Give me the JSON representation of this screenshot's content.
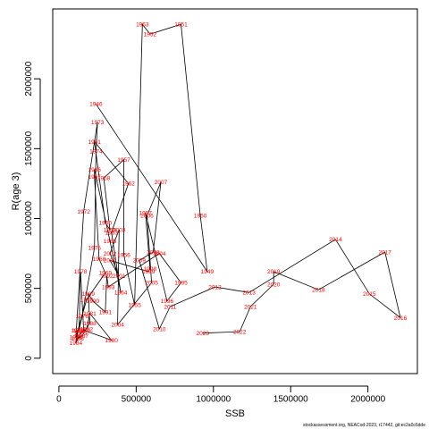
{
  "chart_data": {
    "type": "scatter",
    "xlabel": "SSB",
    "ylabel": "R(age 3)",
    "xlim": [
      -40000,
      2320000
    ],
    "ylim": [
      -110000,
      2500000
    ],
    "x_ticks": [
      0,
      500000,
      1000000,
      1500000,
      2000000
    ],
    "x_tick_labels": [
      "0",
      "500000",
      "1000000",
      "1500000",
      "2000000"
    ],
    "y_ticks": [
      0,
      500000,
      1000000,
      1500000,
      2000000
    ],
    "y_tick_labels": [
      "0",
      "500000",
      "1000000",
      "1500000",
      "2000000"
    ],
    "footnote": "stockassessment.org, NEACod-2023, r17442, git:ec2a0c6dde",
    "connected_in_order": true,
    "line_color": "#000000",
    "label_color": "#ff0000",
    "points": [
      {
        "label": "1946",
        "x": 240000,
        "y": 1820000
      },
      {
        "label": "1949",
        "x": 960000,
        "y": 620000
      },
      {
        "label": "1950",
        "x": 915000,
        "y": 1020000
      },
      {
        "label": "1951",
        "x": 790000,
        "y": 2390000
      },
      {
        "label": "1952",
        "x": 590000,
        "y": 2320000
      },
      {
        "label": "1953",
        "x": 540000,
        "y": 2390000
      },
      {
        "label": "1955",
        "x": 490000,
        "y": 380000
      },
      {
        "label": "1956",
        "x": 420000,
        "y": 740000
      },
      {
        "label": "1957",
        "x": 420000,
        "y": 1420000
      },
      {
        "label": "1958",
        "x": 290000,
        "y": 1290000
      },
      {
        "label": "1959",
        "x": 330000,
        "y": 920000
      },
      {
        "label": "1960",
        "x": 300000,
        "y": 970000
      },
      {
        "label": "1961",
        "x": 230000,
        "y": 1550000
      },
      {
        "label": "1962",
        "x": 450000,
        "y": 1250000
      },
      {
        "label": "1963",
        "x": 340000,
        "y": 900000
      },
      {
        "label": "1964",
        "x": 400000,
        "y": 470000
      },
      {
        "label": "1965",
        "x": 330000,
        "y": 840000
      },
      {
        "label": "1966",
        "x": 230000,
        "y": 1350000
      },
      {
        "label": "1967",
        "x": 230000,
        "y": 1300000
      },
      {
        "label": "1968",
        "x": 260000,
        "y": 710000
      },
      {
        "label": "1969",
        "x": 300000,
        "y": 610000
      },
      {
        "label": "1970",
        "x": 180000,
        "y": 420000
      },
      {
        "label": "1971",
        "x": 110000,
        "y": 150000
      },
      {
        "label": "1972",
        "x": 160000,
        "y": 1050000
      },
      {
        "label": "1973",
        "x": 250000,
        "y": 1690000
      },
      {
        "label": "1974",
        "x": 240000,
        "y": 1480000
      },
      {
        "label": "1975",
        "x": 230000,
        "y": 790000
      },
      {
        "label": "1976",
        "x": 150000,
        "y": 300000
      },
      {
        "label": "1977",
        "x": 130000,
        "y": 200000
      },
      {
        "label": "1978",
        "x": 140000,
        "y": 620000
      },
      {
        "label": "1979",
        "x": 160000,
        "y": 200000
      },
      {
        "label": "1980",
        "x": 340000,
        "y": 130000
      },
      {
        "label": "1981",
        "x": 200000,
        "y": 320000
      },
      {
        "label": "1982",
        "x": 180000,
        "y": 210000
      },
      {
        "label": "1983",
        "x": 140000,
        "y": 180000
      },
      {
        "label": "1984",
        "x": 110000,
        "y": 110000
      },
      {
        "label": "1985",
        "x": 120000,
        "y": 200000
      },
      {
        "label": "1986",
        "x": 120000,
        "y": 140000
      },
      {
        "label": "1987",
        "x": 150000,
        "y": 160000
      },
      {
        "label": "1988",
        "x": 200000,
        "y": 250000
      },
      {
        "label": "1989",
        "x": 190000,
        "y": 460000
      },
      {
        "label": "1990",
        "x": 220000,
        "y": 410000
      },
      {
        "label": "1991",
        "x": 300000,
        "y": 330000
      },
      {
        "label": "1992",
        "x": 310000,
        "y": 590000
      },
      {
        "label": "1993",
        "x": 320000,
        "y": 510000
      },
      {
        "label": "1994",
        "x": 650000,
        "y": 750000
      },
      {
        "label": "1995",
        "x": 790000,
        "y": 540000
      },
      {
        "label": "1996",
        "x": 700000,
        "y": 410000
      },
      {
        "label": "1997",
        "x": 560000,
        "y": 1040000
      },
      {
        "label": "1998",
        "x": 590000,
        "y": 640000
      },
      {
        "label": "1999",
        "x": 580000,
        "y": 620000
      },
      {
        "label": "2000",
        "x": 330000,
        "y": 700000
      },
      {
        "label": "2001",
        "x": 390000,
        "y": 590000
      },
      {
        "label": "2002",
        "x": 330000,
        "y": 750000
      },
      {
        "label": "2003",
        "x": 390000,
        "y": 920000
      },
      {
        "label": "2004",
        "x": 380000,
        "y": 240000
      },
      {
        "label": "2005",
        "x": 600000,
        "y": 540000
      },
      {
        "label": "2006",
        "x": 570000,
        "y": 1020000
      },
      {
        "label": "2007",
        "x": 660000,
        "y": 1260000
      },
      {
        "label": "2008",
        "x": 610000,
        "y": 760000
      },
      {
        "label": "2009",
        "x": 520000,
        "y": 700000
      },
      {
        "label": "2010",
        "x": 650000,
        "y": 210000
      },
      {
        "label": "2011",
        "x": 720000,
        "y": 370000
      },
      {
        "label": "2012",
        "x": 1010000,
        "y": 510000
      },
      {
        "label": "2013",
        "x": 1230000,
        "y": 470000
      },
      {
        "label": "2014",
        "x": 1790000,
        "y": 850000
      },
      {
        "label": "2015",
        "x": 2010000,
        "y": 460000
      },
      {
        "label": "2016",
        "x": 2210000,
        "y": 290000
      },
      {
        "label": "2017",
        "x": 2110000,
        "y": 760000
      },
      {
        "label": "2018",
        "x": 1680000,
        "y": 490000
      },
      {
        "label": "2019",
        "x": 1390000,
        "y": 620000
      },
      {
        "label": "2020",
        "x": 1390000,
        "y": 530000
      },
      {
        "label": "2021",
        "x": 1240000,
        "y": 370000
      },
      {
        "label": "2022",
        "x": 1170000,
        "y": 190000
      },
      {
        "label": "2023",
        "x": 930000,
        "y": 180000
      }
    ]
  }
}
